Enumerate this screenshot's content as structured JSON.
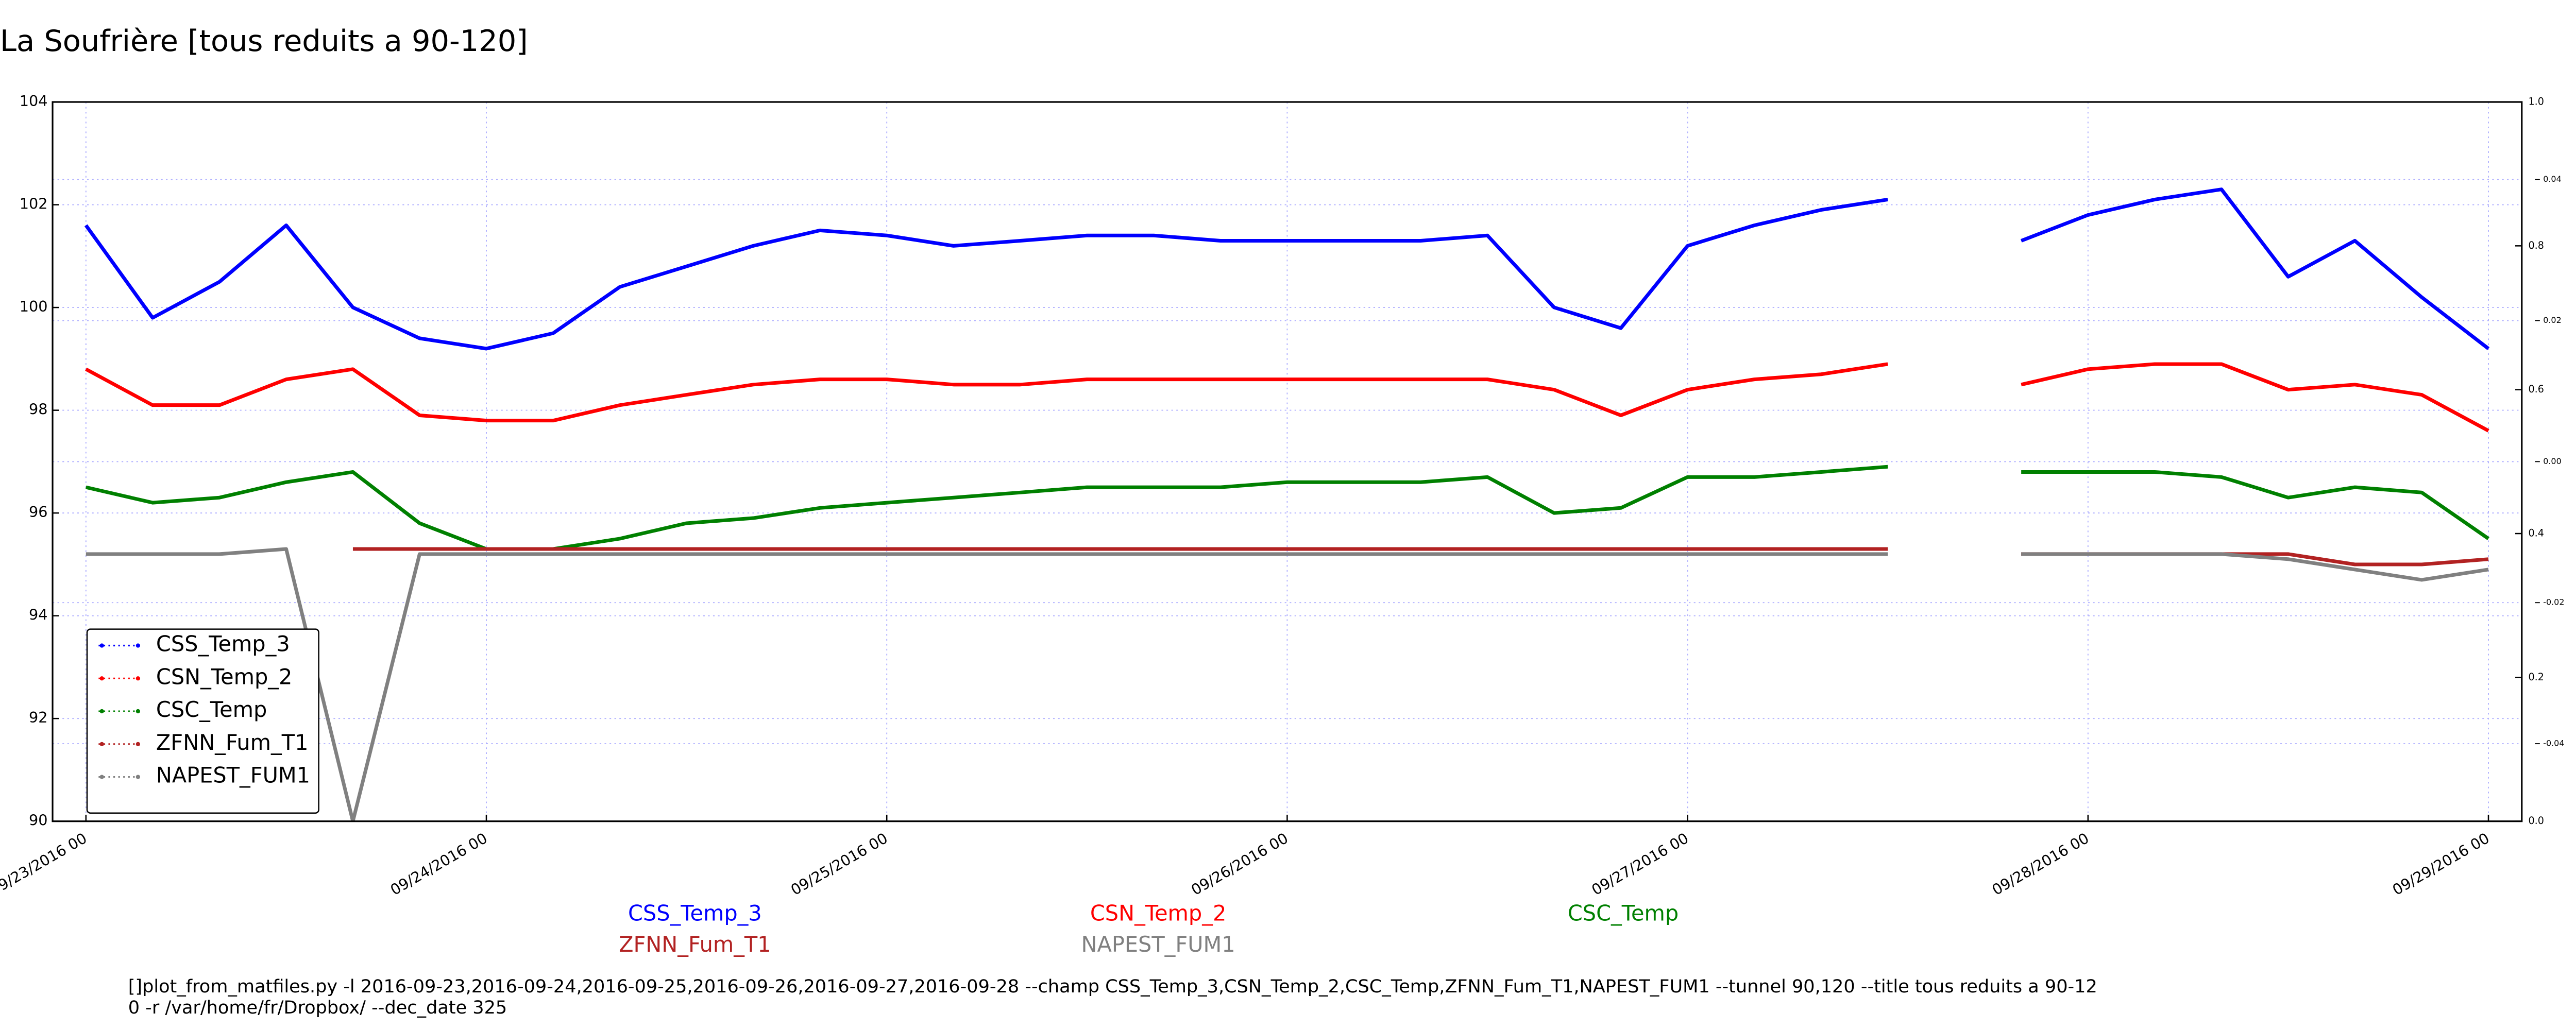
{
  "chart_data": {
    "type": "line",
    "title": "La Soufrière [tous reduits a 90-120]",
    "x": [
      "2016-09-23 00",
      "2016-09-23 04",
      "2016-09-23 08",
      "2016-09-23 12",
      "2016-09-23 16",
      "2016-09-23 20",
      "2016-09-24 00",
      "2016-09-24 04",
      "2016-09-24 08",
      "2016-09-24 12",
      "2016-09-24 16",
      "2016-09-24 20",
      "2016-09-25 00",
      "2016-09-25 04",
      "2016-09-25 08",
      "2016-09-25 12",
      "2016-09-25 16",
      "2016-09-25 20",
      "2016-09-26 00",
      "2016-09-26 04",
      "2016-09-26 08",
      "2016-09-26 12",
      "2016-09-26 16",
      "2016-09-26 20",
      "2016-09-27 00",
      "2016-09-27 04",
      "2016-09-27 08",
      "2016-09-27 12",
      "2016-09-27 16",
      "2016-09-27 20",
      "2016-09-28 00",
      "2016-09-28 04",
      "2016-09-28 08",
      "2016-09-28 12",
      "2016-09-28 16",
      "2016-09-28 20",
      "2016-09-29 00"
    ],
    "series": [
      {
        "name": "CSS_Temp_3",
        "color": "#0000ff",
        "values": [
          101.6,
          99.8,
          100.5,
          101.6,
          100.0,
          99.4,
          99.2,
          99.5,
          100.4,
          100.8,
          101.2,
          101.5,
          101.4,
          101.2,
          101.3,
          101.4,
          101.4,
          101.3,
          101.3,
          101.3,
          101.3,
          101.4,
          100.0,
          99.6,
          101.2,
          101.6,
          101.9,
          102.1,
          null,
          101.3,
          101.8,
          102.1,
          102.3,
          100.6,
          101.3,
          100.2,
          99.2
        ]
      },
      {
        "name": "CSN_Temp_2",
        "color": "#ff0000",
        "values": [
          98.8,
          98.1,
          98.1,
          98.6,
          98.8,
          97.9,
          97.8,
          97.8,
          98.1,
          98.3,
          98.5,
          98.6,
          98.6,
          98.5,
          98.5,
          98.6,
          98.6,
          98.6,
          98.6,
          98.6,
          98.6,
          98.6,
          98.4,
          97.9,
          98.4,
          98.6,
          98.7,
          98.9,
          null,
          98.5,
          98.8,
          98.9,
          98.9,
          98.4,
          98.5,
          98.3,
          97.6
        ]
      },
      {
        "name": "CSC_Temp",
        "color": "#008000",
        "values": [
          96.5,
          96.2,
          96.3,
          96.6,
          96.8,
          95.8,
          95.3,
          95.3,
          95.5,
          95.8,
          95.9,
          96.1,
          96.2,
          96.3,
          96.4,
          96.5,
          96.5,
          96.5,
          96.6,
          96.6,
          96.6,
          96.7,
          96.0,
          96.1,
          96.7,
          96.7,
          96.8,
          96.9,
          null,
          96.8,
          96.8,
          96.8,
          96.7,
          96.3,
          96.5,
          96.4,
          95.5
        ]
      },
      {
        "name": "ZFNN_Fum_T1",
        "color": "#b22222",
        "values": [
          null,
          null,
          null,
          null,
          95.3,
          95.3,
          95.3,
          95.3,
          95.3,
          95.3,
          95.3,
          95.3,
          95.3,
          95.3,
          95.3,
          95.3,
          95.3,
          95.3,
          95.3,
          95.3,
          95.3,
          95.3,
          95.3,
          95.3,
          95.3,
          95.3,
          95.3,
          95.3,
          null,
          95.2,
          95.2,
          95.2,
          95.2,
          95.2,
          95.0,
          95.0,
          95.1
        ]
      },
      {
        "name": "NAPEST_FUM1",
        "color": "#808080",
        "values": [
          95.2,
          95.2,
          95.2,
          95.3,
          90.0,
          95.2,
          95.2,
          95.2,
          95.2,
          95.2,
          95.2,
          95.2,
          95.2,
          95.2,
          95.2,
          95.2,
          95.2,
          95.2,
          95.2,
          95.2,
          95.2,
          95.2,
          95.2,
          95.2,
          95.2,
          95.2,
          95.2,
          95.2,
          null,
          95.2,
          95.2,
          95.2,
          95.2,
          95.1,
          94.9,
          94.7,
          94.9
        ]
      }
    ],
    "xlim": [
      "2016-09-22 22",
      "2016-09-29 02"
    ],
    "xticks": [
      {
        "value": "2016-09-23 00",
        "label": "09/23/2016 00"
      },
      {
        "value": "2016-09-24 00",
        "label": "09/24/2016 00"
      },
      {
        "value": "2016-09-25 00",
        "label": "09/25/2016 00"
      },
      {
        "value": "2016-09-26 00",
        "label": "09/26/2016 00"
      },
      {
        "value": "2016-09-27 00",
        "label": "09/27/2016 00"
      },
      {
        "value": "2016-09-28 00",
        "label": "09/28/2016 00"
      },
      {
        "value": "2016-09-29 00",
        "label": "09/29/2016 00"
      }
    ],
    "ylim": [
      90,
      104
    ],
    "yticks": [
      90,
      92,
      94,
      96,
      98,
      100,
      102,
      104
    ],
    "y2lim": [
      0,
      1
    ],
    "y2ticks": [
      {
        "value": 0,
        "label": "0.0"
      },
      0.2,
      0.4,
      0.6,
      0.8,
      {
        "value": 1,
        "label": "1.0"
      }
    ],
    "y3lim": [
      -0.051,
      0.051
    ],
    "y3ticks": [
      -0.04,
      -0.02,
      {
        "value": 0,
        "label": "0.00"
      },
      0.02,
      0.04
    ],
    "grid": true,
    "legend": "lower left",
    "command": [
      "[]plot_from_matfiles.py -l 2016-09-23,2016-09-24,2016-09-25,2016-09-26,2016-09-27,2016-09-28 --champ CSS_Temp_3,CSN_Temp_2,CSC_Temp,ZFNN_Fum_T1,NAPEST_FUM1 --tunnel 90,120 --title tous reduits a 90-12",
      "0 -r /var/home/fr/Dropbox/ --dec_date 325"
    ]
  }
}
